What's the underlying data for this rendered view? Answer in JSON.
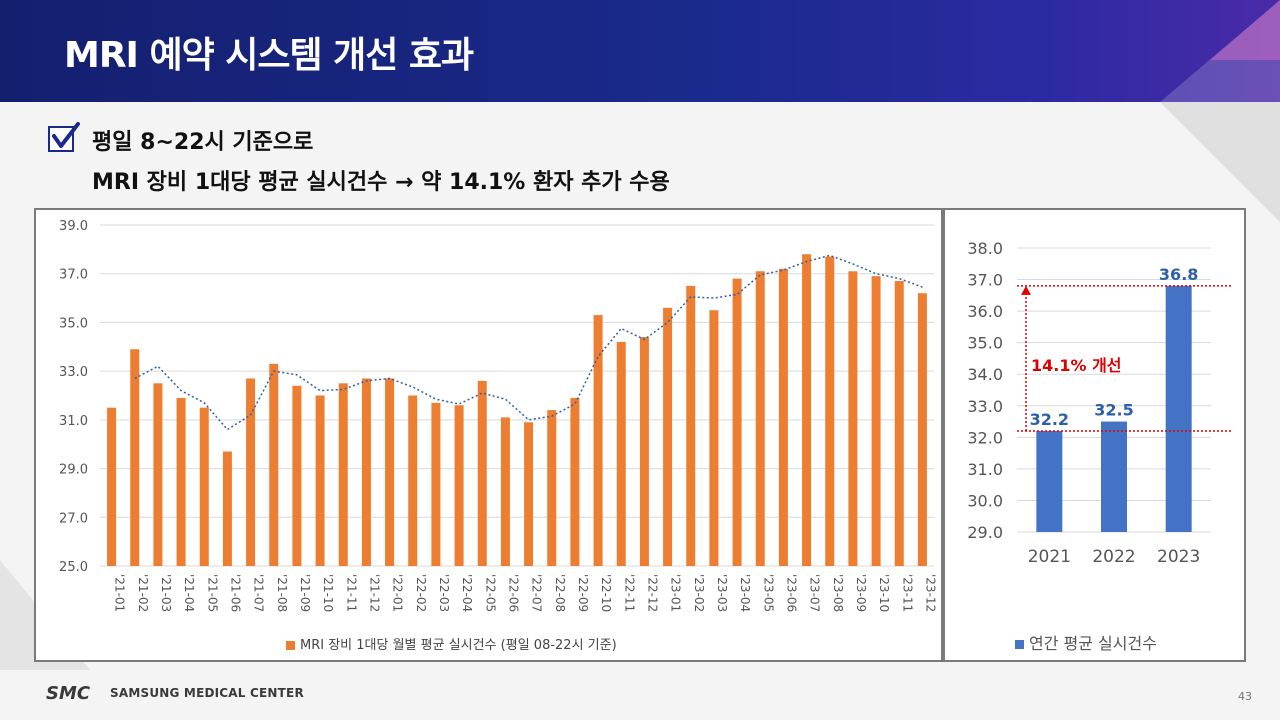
{
  "header": {
    "title": "MRI 예약 시스템 개선 효과"
  },
  "subtitle": {
    "line1": "평일 8~22시 기준으로",
    "line2": "MRI 장비 1대당 평균 실시건수 → 약 14.1% 환자 추가 수용"
  },
  "colors": {
    "bar": "#ed7d31",
    "trend": "#2e5fa8",
    "bar2": "#4472c4",
    "label2": "#2e5fa8",
    "annotation": "#e00000"
  },
  "chart_data": [
    {
      "type": "bar",
      "title": "",
      "categories": [
        "'21-01",
        "'21-02",
        "'21-03",
        "'21-04",
        "'21-05",
        "'21-06",
        "'21-07",
        "'21-08",
        "'21-09",
        "'21-10",
        "'21-11",
        "'21-12",
        "'22-01",
        "'22-02",
        "'22-03",
        "'22-04",
        "'22-05",
        "'22-06",
        "'22-07",
        "'22-08",
        "'22-09",
        "'22-10",
        "'22-11",
        "'22-12",
        "'23-01",
        "'23-02",
        "'23-03",
        "'23-04",
        "'23-05",
        "'23-06",
        "'23-07",
        "'23-08",
        "'23-09",
        "'23-10",
        "'23-11",
        "'23-12"
      ],
      "values": [
        31.5,
        33.9,
        32.5,
        31.9,
        31.5,
        29.7,
        32.7,
        33.3,
        32.4,
        32.0,
        32.5,
        32.7,
        32.7,
        32.0,
        31.7,
        31.6,
        32.6,
        31.1,
        30.9,
        31.4,
        31.9,
        35.3,
        34.2,
        34.4,
        35.6,
        36.5,
        35.5,
        36.8,
        37.1,
        37.2,
        37.8,
        37.7,
        37.1,
        36.9,
        36.7,
        36.2
      ],
      "trend": {
        "type": "moving-average-2",
        "style": "dotted"
      },
      "ylim": [
        25.0,
        39.0
      ],
      "yticks": [
        "25.0",
        "27.0",
        "29.0",
        "31.0",
        "33.0",
        "35.0",
        "37.0",
        "39.0"
      ],
      "legend": "MRI 장비 1대당 월별 평균 실시건수 (평일 08-22시 기준)"
    },
    {
      "type": "bar",
      "title": "",
      "categories": [
        "2021",
        "2022",
        "2023"
      ],
      "values": [
        32.2,
        32.5,
        36.8
      ],
      "data_labels": [
        "32.2",
        "32.5",
        "36.8"
      ],
      "ylim": [
        29.0,
        38.0
      ],
      "yticks": [
        "29.0",
        "30.0",
        "31.0",
        "32.0",
        "33.0",
        "34.0",
        "35.0",
        "36.0",
        "37.0",
        "38.0"
      ],
      "legend": "연간 평균 실시건수",
      "annotation": "14.1% 개선"
    }
  ],
  "footer": {
    "logo": "SMC",
    "name": "SAMSUNG MEDICAL CENTER",
    "page": "43"
  }
}
